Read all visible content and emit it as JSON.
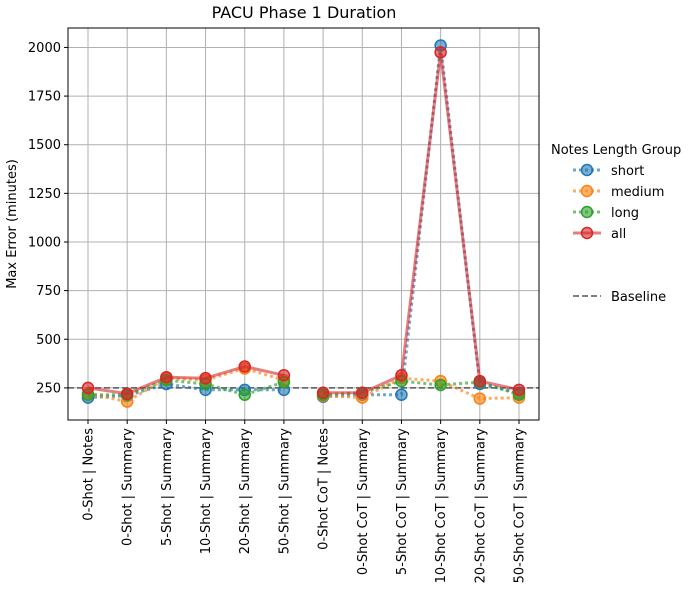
{
  "chart_data": {
    "type": "line",
    "title": "PACU Phase 1 Duration",
    "xlabel": "",
    "ylabel": "Max Error (minutes)",
    "ylim": [
      85,
      2100
    ],
    "yticks": [
      250,
      500,
      750,
      1000,
      1250,
      1500,
      1750,
      2000
    ],
    "grid": true,
    "legend_title": "Notes Length Group",
    "legend_placement": "right",
    "categories": [
      "0-Shot | Notes",
      "0-Shot | Summary",
      "5-Shot | Summary",
      "10-Shot | Summary",
      "20-Shot | Summary",
      "50-Shot | Summary",
      "0-Shot CoT | Notes",
      "0-Shot CoT | Summary",
      "5-Shot CoT | Summary",
      "10-Shot CoT | Summary",
      "20-Shot CoT | Summary",
      "50-Shot CoT | Summary"
    ],
    "segments": [
      [
        0,
        5
      ],
      [
        6,
        11
      ]
    ],
    "series": [
      {
        "name": "short",
        "color": "#1f77b4",
        "style": "dotted",
        "values": [
          200,
          210,
          270,
          240,
          240,
          240,
          205,
          215,
          215,
          2010,
          270,
          225
        ]
      },
      {
        "name": "medium",
        "color": "#ff7f0e",
        "style": "dotted",
        "values": [
          220,
          180,
          300,
          290,
          350,
          290,
          210,
          200,
          300,
          285,
          195,
          200
        ]
      },
      {
        "name": "long",
        "color": "#2ca02c",
        "style": "dotted",
        "values": [
          215,
          215,
          290,
          270,
          215,
          280,
          215,
          225,
          285,
          265,
          280,
          215
        ]
      },
      {
        "name": "all",
        "color": "#d62728",
        "style": "solid",
        "values": [
          250,
          220,
          305,
          300,
          360,
          315,
          225,
          225,
          315,
          1975,
          285,
          240
        ]
      }
    ],
    "baseline": {
      "name": "Baseline",
      "value": 250,
      "color": "#555555",
      "style": "dashed"
    }
  }
}
